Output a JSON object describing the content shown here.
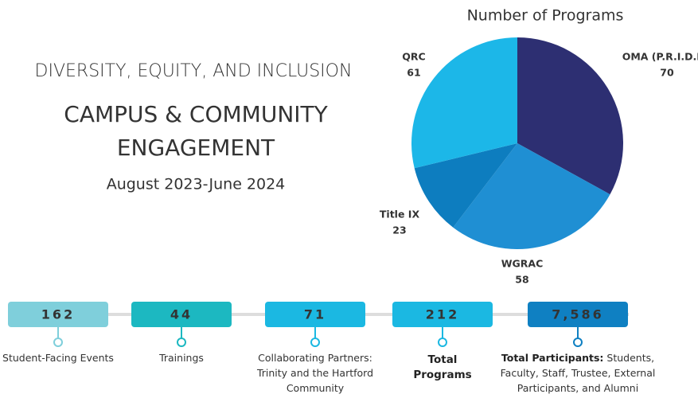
{
  "header": {
    "kicker": "DIVERSITY, EQUITY, AND INCLUSION",
    "title_line1": "CAMPUS & COMMUNITY",
    "title_line2": "ENGAGEMENT",
    "period": "August 2023-June 2024"
  },
  "chart_data": {
    "type": "pie",
    "title": "Number of Programs",
    "categories": [
      "OMA (P.R.I.D.E.)",
      "WGRAC",
      "Title IX",
      "QRC"
    ],
    "values": [
      70,
      58,
      23,
      61
    ],
    "colors": [
      "#2d2f72",
      "#1f8fd3",
      "#0d7dbf",
      "#1cb7e8"
    ]
  },
  "stats": [
    {
      "value": "162",
      "label": "Student-Facing Events",
      "color": "#7fcfdb"
    },
    {
      "value": "44",
      "label": "Trainings",
      "color": "#1cb8c1"
    },
    {
      "value": "71",
      "label": "Collaborating Partners: Trinity and the Hartford Community",
      "color": "#1bb8e2"
    },
    {
      "value": "212",
      "label_bold": "Total Programs",
      "color": "#1bb8e2"
    },
    {
      "value": "7,586",
      "label_bold": "Total Participants:",
      "label": "Students, Faculty, Staff, Trustee, External Participants, and Alumni",
      "color": "#0f80c2"
    }
  ]
}
